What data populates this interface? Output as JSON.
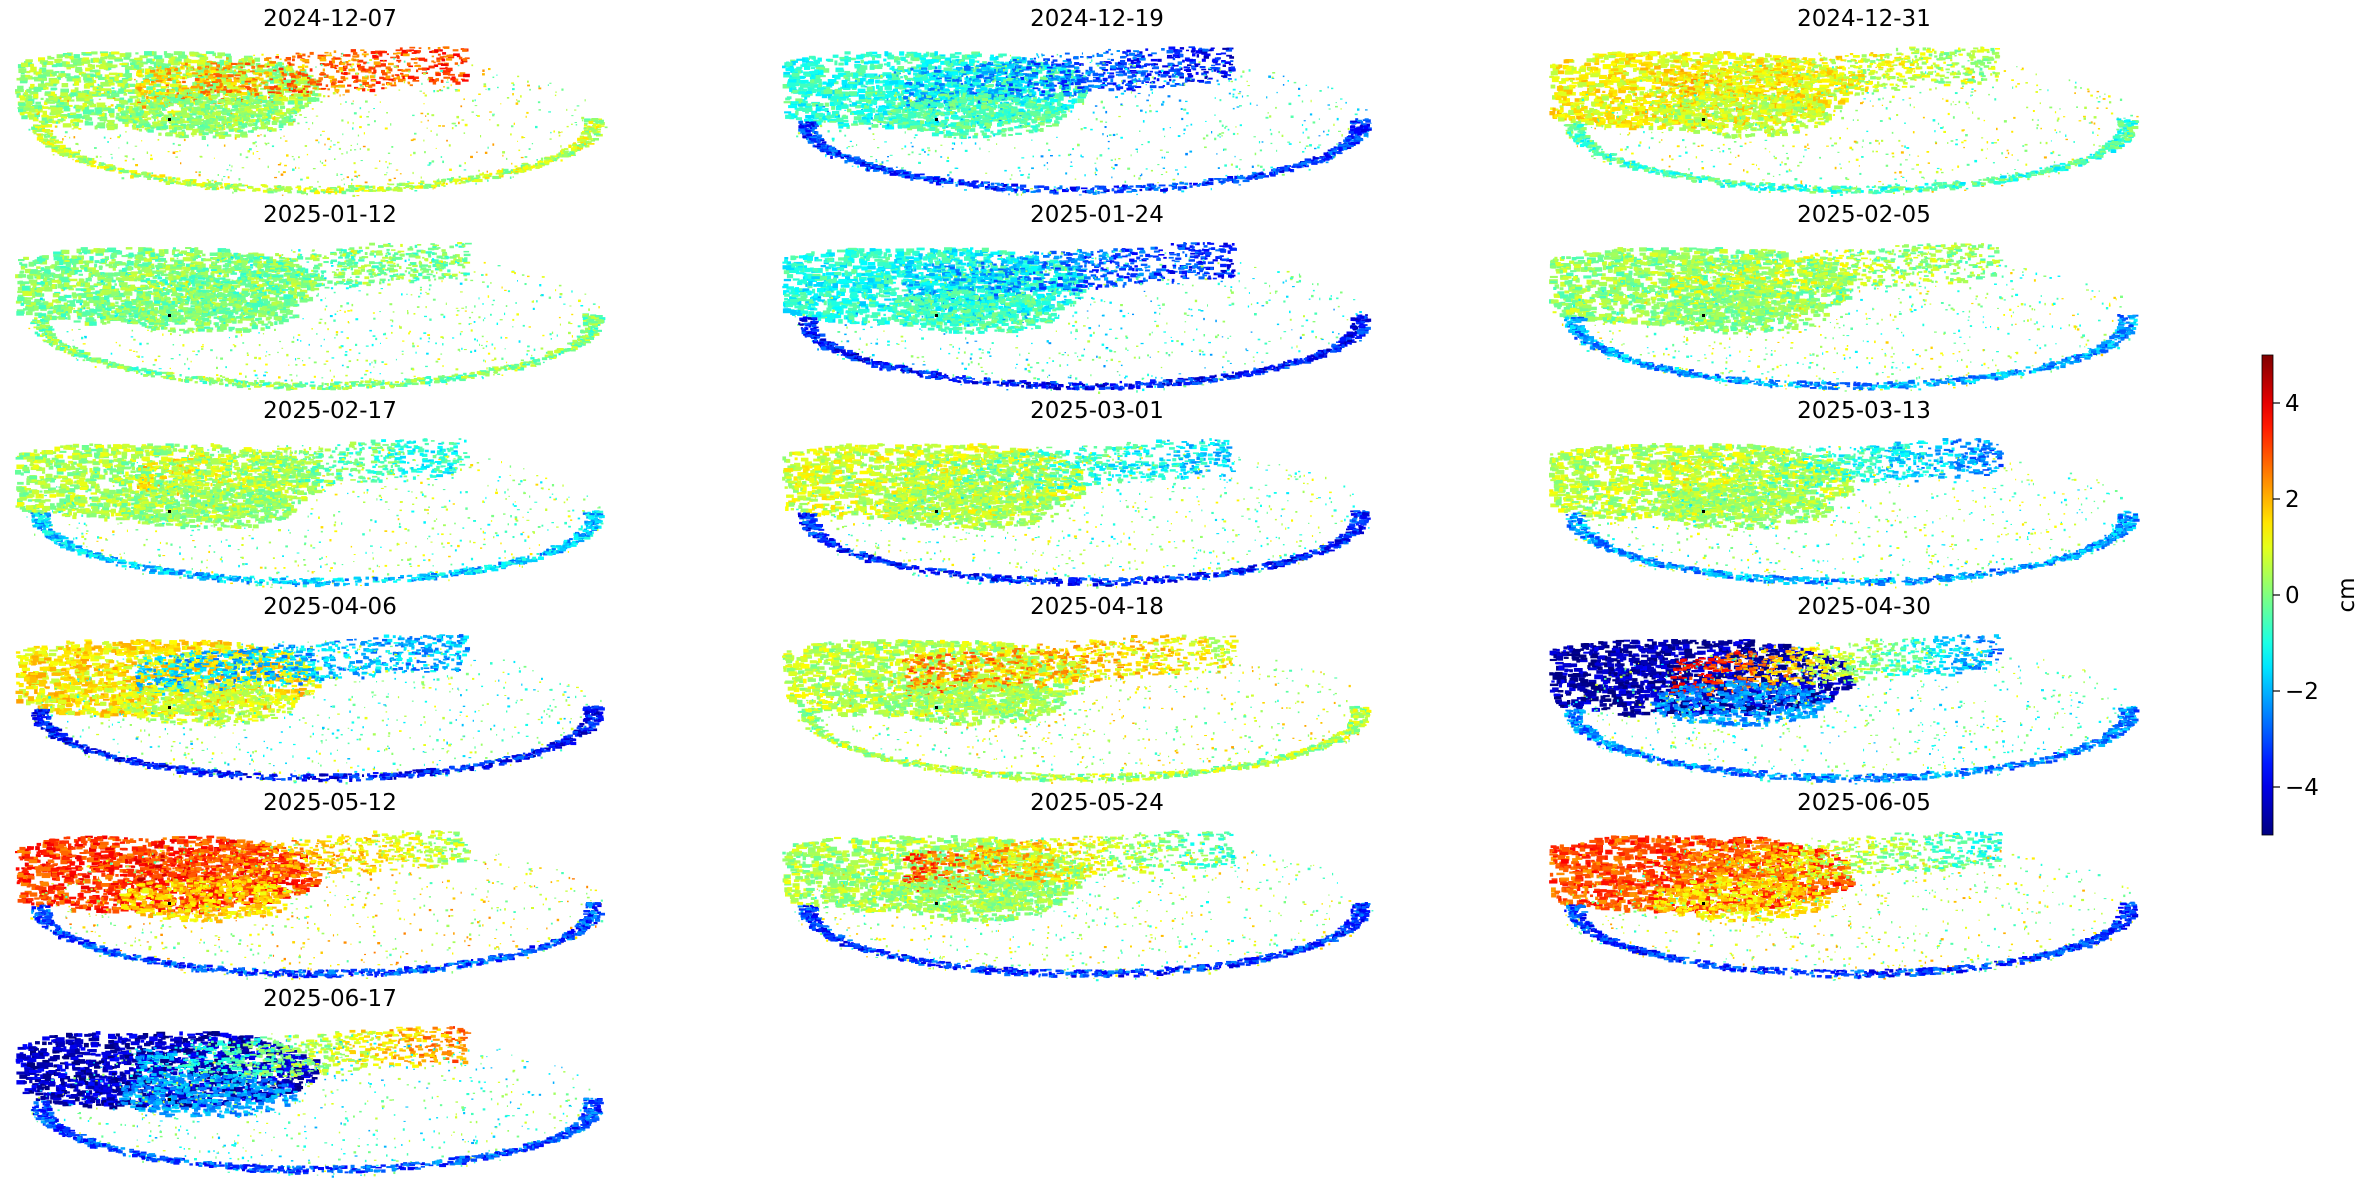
{
  "chart_data": {
    "type": "heatmap",
    "description_kind": "small multiples of displacement maps",
    "colormap": "jet",
    "colorbar": {
      "label": "cm",
      "vmin": -5,
      "vmax": 5,
      "ticks": [
        4,
        2,
        0,
        -2,
        -4
      ],
      "tick_labels": [
        "4",
        "2",
        "0",
        "−2",
        "−4"
      ]
    },
    "grid": false,
    "axes_visible": false,
    "panels": [
      {
        "title": "2024-12-07",
        "pattern": [
          0.3,
          1.8,
          3.2,
          0.6
        ]
      },
      {
        "title": "2024-12-19",
        "pattern": [
          -0.8,
          -1.8,
          -3.8,
          -3.2
        ]
      },
      {
        "title": "2024-12-31",
        "pattern": [
          1.2,
          1.6,
          0.4,
          -0.6
        ]
      },
      {
        "title": "2025-01-12",
        "pattern": [
          0.0,
          0.0,
          0.0,
          0.0
        ]
      },
      {
        "title": "2025-01-24",
        "pattern": [
          -1.0,
          -1.6,
          -3.6,
          -3.6
        ]
      },
      {
        "title": "2025-02-05",
        "pattern": [
          0.2,
          0.8,
          0.2,
          -2.2
        ]
      },
      {
        "title": "2025-02-17",
        "pattern": [
          0.4,
          1.4,
          -1.2,
          -1.8
        ]
      },
      {
        "title": "2025-03-01",
        "pattern": [
          0.8,
          0.6,
          -1.8,
          -3.4
        ]
      },
      {
        "title": "2025-03-13",
        "pattern": [
          0.6,
          1.2,
          -2.6,
          -2.2
        ]
      },
      {
        "title": "2025-04-06",
        "pattern": [
          1.4,
          -1.8,
          -2.0,
          -3.6
        ]
      },
      {
        "title": "2025-04-18",
        "pattern": [
          0.6,
          2.6,
          1.0,
          0.4
        ]
      },
      {
        "title": "2025-04-30",
        "pattern": [
          -4.6,
          4.2,
          -2.6,
          -2.4
        ]
      },
      {
        "title": "2025-05-12",
        "pattern": [
          3.2,
          3.6,
          0.4,
          -3.0
        ]
      },
      {
        "title": "2025-05-24",
        "pattern": [
          0.4,
          3.2,
          -0.8,
          -3.2
        ]
      },
      {
        "title": "2025-06-05",
        "pattern": [
          3.0,
          2.8,
          -1.0,
          -3.2
        ]
      },
      {
        "title": "2025-06-17",
        "pattern": [
          -4.4,
          -2.0,
          2.6,
          -3.0
        ]
      }
    ]
  }
}
